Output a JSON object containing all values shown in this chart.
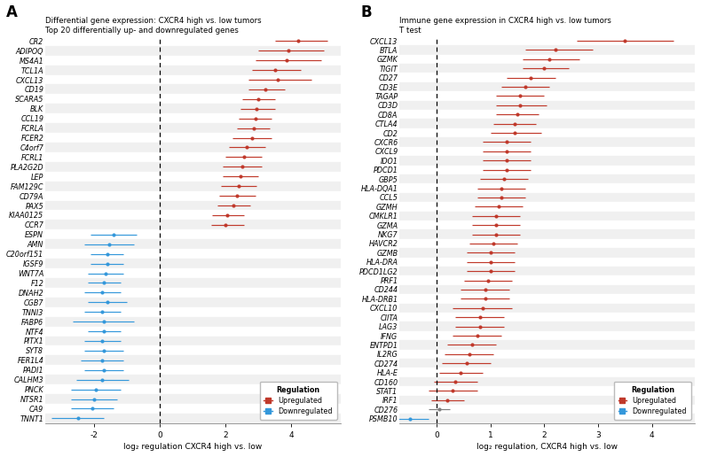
{
  "panel_A": {
    "title_line1": "Differential gene expression: CXCR4 high vs. low tumors",
    "title_line2": "Top 20 differentially up- and downregulated genes",
    "xlabel": "log₂ regulation CXCR4 high vs. low",
    "xlim": [
      -3.5,
      5.5
    ],
    "xticks": [
      -2,
      0,
      2,
      4
    ],
    "genes": [
      "CR2",
      "ADIPOQ",
      "MS4A1",
      "TCL1A",
      "CXCL13",
      "CD19",
      "SCARA5",
      "BLK",
      "CCL19",
      "FCRLA",
      "FCER2",
      "C4orf7",
      "FCRL1",
      "PLA2G2D",
      "LEP",
      "FAM129C",
      "CD79A",
      "PAX5",
      "KIAA0125",
      "CCR7",
      "ESPN",
      "AMN",
      "C20orf151",
      "IGSF9",
      "WNT7A",
      "F12",
      "DNAH2",
      "CGB7",
      "TNNI3",
      "FABP6",
      "NTF4",
      "PITX1",
      "SYT8",
      "FER1L4",
      "PADI1",
      "CALHM3",
      "PNCK",
      "NTSR1",
      "CA9",
      "TNNT1"
    ],
    "means": [
      4.2,
      3.9,
      3.85,
      3.5,
      3.6,
      3.2,
      3.0,
      2.95,
      2.9,
      2.85,
      2.8,
      2.65,
      2.55,
      2.5,
      2.45,
      2.4,
      2.35,
      2.25,
      2.05,
      2.0,
      -1.4,
      -1.55,
      -1.6,
      -1.6,
      -1.65,
      -1.7,
      -1.75,
      -1.6,
      -1.75,
      -1.7,
      -1.7,
      -1.75,
      -1.7,
      -1.75,
      -1.7,
      -1.75,
      -1.95,
      -2.0,
      -2.05,
      -2.5
    ],
    "ci_low": [
      3.5,
      3.0,
      2.9,
      2.8,
      2.7,
      2.7,
      2.5,
      2.45,
      2.4,
      2.35,
      2.2,
      2.1,
      2.0,
      1.9,
      1.9,
      1.85,
      1.8,
      1.75,
      1.6,
      1.55,
      -2.1,
      -2.3,
      -2.1,
      -2.1,
      -2.2,
      -2.2,
      -2.3,
      -2.2,
      -2.3,
      -2.65,
      -2.2,
      -2.3,
      -2.3,
      -2.4,
      -2.3,
      -2.55,
      -2.7,
      -2.7,
      -2.7,
      -3.3
    ],
    "ci_high": [
      5.1,
      5.0,
      4.9,
      4.3,
      4.6,
      3.8,
      3.5,
      3.5,
      3.4,
      3.35,
      3.4,
      3.2,
      3.1,
      3.1,
      3.0,
      2.95,
      2.9,
      2.75,
      2.55,
      2.55,
      -0.7,
      -0.8,
      -1.1,
      -1.1,
      -1.1,
      -1.2,
      -1.2,
      -1.0,
      -1.2,
      -0.8,
      -1.2,
      -1.2,
      -1.1,
      -1.1,
      -1.1,
      -0.95,
      -1.2,
      -1.3,
      -1.4,
      -1.7
    ],
    "colors": [
      "#c0392b",
      "#c0392b",
      "#c0392b",
      "#c0392b",
      "#c0392b",
      "#c0392b",
      "#c0392b",
      "#c0392b",
      "#c0392b",
      "#c0392b",
      "#c0392b",
      "#c0392b",
      "#c0392b",
      "#c0392b",
      "#c0392b",
      "#c0392b",
      "#c0392b",
      "#c0392b",
      "#c0392b",
      "#c0392b",
      "#3498db",
      "#3498db",
      "#3498db",
      "#3498db",
      "#3498db",
      "#3498db",
      "#3498db",
      "#3498db",
      "#3498db",
      "#3498db",
      "#3498db",
      "#3498db",
      "#3498db",
      "#3498db",
      "#3498db",
      "#3498db",
      "#3498db",
      "#3498db",
      "#3498db",
      "#3498db"
    ]
  },
  "panel_B": {
    "title_line1": "Immune gene expression in CXCR4 high vs. low tumors",
    "title_line2": "T test",
    "xlabel": "log₂ regulation, CXCR4 high vs. low",
    "xlim": [
      -0.7,
      4.8
    ],
    "xticks": [
      0,
      1,
      2,
      3,
      4
    ],
    "genes": [
      "CXCL13",
      "BTLA",
      "GZMK",
      "TIGIT",
      "CD27",
      "CD3E",
      "TAGAP",
      "CD3D",
      "CD8A",
      "CTLA4",
      "CD2",
      "CXCR6",
      "CXCL9",
      "IDO1",
      "PDCD1",
      "GBP5",
      "HLA-DQA1",
      "CCL5",
      "GZMH",
      "CMKLR1",
      "GZMA",
      "NKG7",
      "HAVCR2",
      "GZMB",
      "HLA-DRA",
      "PDCD1LG2",
      "PRF1",
      "CD244",
      "HLA-DRB1",
      "CXCL10",
      "CIITA",
      "LAG3",
      "IFNG",
      "ENTPD1",
      "IL2RG",
      "CD274",
      "HLA-E",
      "CD160",
      "STAT1",
      "IRF1",
      "CD276",
      "PSMB10"
    ],
    "means": [
      3.5,
      2.2,
      2.1,
      2.0,
      1.75,
      1.65,
      1.55,
      1.55,
      1.5,
      1.45,
      1.45,
      1.3,
      1.3,
      1.3,
      1.3,
      1.25,
      1.2,
      1.2,
      1.15,
      1.1,
      1.1,
      1.1,
      1.05,
      1.0,
      1.0,
      1.0,
      0.95,
      0.9,
      0.9,
      0.85,
      0.8,
      0.8,
      0.75,
      0.65,
      0.6,
      0.55,
      0.45,
      0.35,
      0.3,
      0.2,
      0.05,
      -0.5
    ],
    "ci_low": [
      2.6,
      1.65,
      1.6,
      1.6,
      1.3,
      1.2,
      1.1,
      1.1,
      1.1,
      1.05,
      1.0,
      0.85,
      0.85,
      0.85,
      0.85,
      0.8,
      0.75,
      0.75,
      0.7,
      0.65,
      0.65,
      0.65,
      0.6,
      0.55,
      0.55,
      0.55,
      0.5,
      0.45,
      0.45,
      0.3,
      0.35,
      0.35,
      0.3,
      0.2,
      0.15,
      0.1,
      0.05,
      -0.05,
      -0.15,
      -0.1,
      -0.15,
      -0.85
    ],
    "ci_high": [
      4.4,
      2.9,
      2.65,
      2.45,
      2.2,
      2.1,
      2.0,
      2.05,
      1.9,
      1.85,
      1.95,
      1.75,
      1.75,
      1.75,
      1.75,
      1.7,
      1.65,
      1.65,
      1.6,
      1.55,
      1.55,
      1.55,
      1.5,
      1.45,
      1.45,
      1.45,
      1.4,
      1.35,
      1.35,
      1.4,
      1.25,
      1.25,
      1.2,
      1.1,
      1.05,
      1.0,
      0.85,
      0.75,
      0.75,
      0.5,
      0.25,
      -0.15
    ],
    "colors": [
      "#c0392b",
      "#c0392b",
      "#c0392b",
      "#c0392b",
      "#c0392b",
      "#c0392b",
      "#c0392b",
      "#c0392b",
      "#c0392b",
      "#c0392b",
      "#c0392b",
      "#c0392b",
      "#c0392b",
      "#c0392b",
      "#c0392b",
      "#c0392b",
      "#c0392b",
      "#c0392b",
      "#c0392b",
      "#c0392b",
      "#c0392b",
      "#c0392b",
      "#c0392b",
      "#c0392b",
      "#c0392b",
      "#c0392b",
      "#c0392b",
      "#c0392b",
      "#c0392b",
      "#c0392b",
      "#c0392b",
      "#c0392b",
      "#c0392b",
      "#c0392b",
      "#c0392b",
      "#c0392b",
      "#c0392b",
      "#c0392b",
      "#c0392b",
      "#c0392b",
      "#808080",
      "#3498db"
    ]
  },
  "bg_color": "#f0f0f0",
  "row_alt_color": "#e8e8e8",
  "grid_color": "#ffffff",
  "label_fontsize": 5.8,
  "title_fontsize": 6.2,
  "axis_fontsize": 6.5,
  "up_color": "#c0392b",
  "down_color": "#3498db",
  "neutral_color": "#808080"
}
